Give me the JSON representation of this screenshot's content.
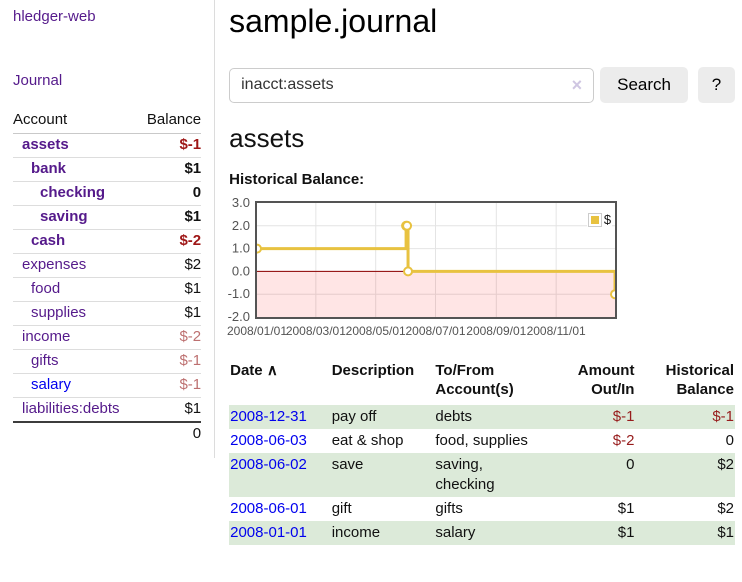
{
  "sidebar": {
    "brand": "hledger-web",
    "journal_link": "Journal",
    "accounts_table": {
      "headers": [
        "Account",
        "Balance"
      ],
      "rows": [
        {
          "name": "assets",
          "indent": 1,
          "bold": true,
          "balance": "$-1",
          "negative": "strong"
        },
        {
          "name": "bank",
          "indent": 2,
          "bold": true,
          "balance": "$1",
          "negative": null
        },
        {
          "name": "checking",
          "indent": 3,
          "bold": true,
          "balance": "0",
          "negative": null
        },
        {
          "name": "saving",
          "indent": 3,
          "bold": true,
          "balance": "$1",
          "negative": null
        },
        {
          "name": "cash",
          "indent": 2,
          "bold": true,
          "balance": "$-2",
          "negative": "strong"
        },
        {
          "name": "expenses",
          "indent": 1,
          "bold": false,
          "balance": "$2",
          "negative": null
        },
        {
          "name": "food",
          "indent": 2,
          "bold": false,
          "balance": "$1",
          "negative": null
        },
        {
          "name": "supplies",
          "indent": 2,
          "bold": false,
          "balance": "$1",
          "negative": null
        },
        {
          "name": "income",
          "indent": 1,
          "bold": false,
          "balance": "$-2",
          "negative": "muted"
        },
        {
          "name": "gifts",
          "indent": 2,
          "bold": false,
          "balance": "$-1",
          "negative": "muted"
        },
        {
          "name": "salary",
          "indent": 2,
          "bold": false,
          "balance": "$-1",
          "negative": "muted",
          "unvisited": true
        },
        {
          "name": "liabilities:debts",
          "indent": 1,
          "bold": false,
          "balance": "$1",
          "negative": null
        }
      ],
      "total": "0"
    }
  },
  "header": {
    "title": "sample.journal"
  },
  "search": {
    "value": "inacct:assets",
    "clear_icon": "×",
    "button_label": "Search",
    "help_label": "?"
  },
  "account_page": {
    "title": "assets",
    "chart_label": "Historical Balance:"
  },
  "chart_data": {
    "type": "line",
    "subtype": "step",
    "title": "Historical Balance:",
    "series": [
      {
        "name": "$",
        "color": "#e8c240",
        "points": [
          [
            "2008/01/01",
            1
          ],
          [
            "2008/06/01",
            2
          ],
          [
            "2008/06/02",
            2
          ],
          [
            "2008/06/03",
            0
          ],
          [
            "2008/12/31",
            -1
          ]
        ]
      }
    ],
    "x_ticks": [
      "2008/01/01",
      "2008/03/01",
      "2008/05/01",
      "2008/07/01",
      "2008/09/01",
      "2008/11/01"
    ],
    "y_ticks": [
      3.0,
      2.0,
      1.0,
      0.0,
      -1.0,
      -2.0
    ],
    "xlim": [
      "2008/01/01",
      "2008/12/31"
    ],
    "ylim": [
      -2,
      3
    ],
    "grid": true,
    "legend_position": "top-right",
    "grid_color": "#e4e4e4",
    "border_color": "#545454",
    "tick_label_color": "#545454",
    "negative_region_color": "#ff0000",
    "negative_region_opacity": 0.1,
    "zero_line_color": "#8b0000"
  },
  "register": {
    "columns": [
      "Date",
      "Description",
      "To/From Account(s)",
      "Amount Out/In",
      "Historical Balance"
    ],
    "sort_icon": "∧",
    "rows": [
      {
        "date": "2008-12-31",
        "description": "pay off",
        "accounts": "debts",
        "amount": "$-1",
        "balance": "$-1"
      },
      {
        "date": "2008-06-03",
        "description": "eat & shop",
        "accounts": "food, supplies",
        "amount": "$-2",
        "balance": "0"
      },
      {
        "date": "2008-06-02",
        "description": "save",
        "accounts": "saving, checking",
        "amount": "0",
        "balance": "$2"
      },
      {
        "date": "2008-06-01",
        "description": "gift",
        "accounts": "gifts",
        "amount": "$1",
        "balance": "$2"
      },
      {
        "date": "2008-01-01",
        "description": "income",
        "accounts": "salary",
        "amount": "$1",
        "balance": "$1"
      }
    ]
  },
  "colors": {
    "link_visited": "#551a8b",
    "link_unvisited": "#0000ee",
    "negative_strong": "#9e1616",
    "negative_muted": "#bd7070",
    "negative_table": "#971c1c",
    "row_stripe_green": "#dcead9",
    "chart_line": "#e8c240"
  }
}
